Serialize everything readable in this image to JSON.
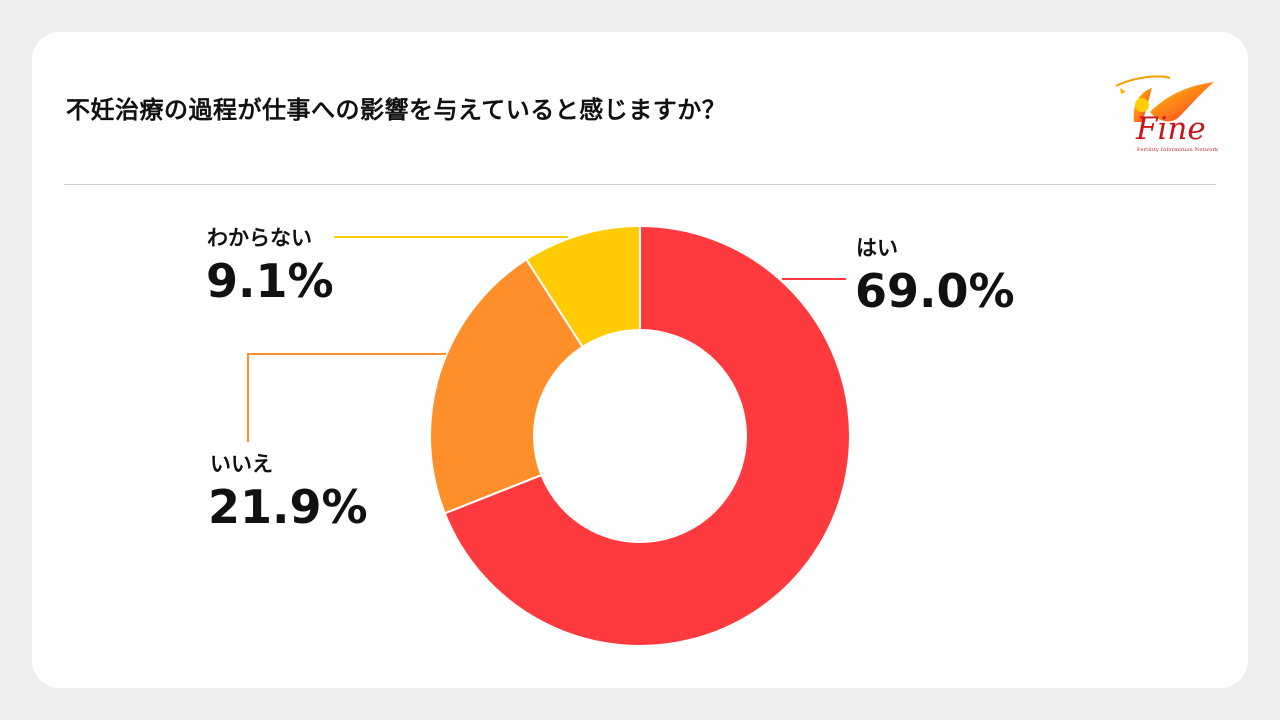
{
  "title": "不妊治療の過程が仕事への影響を与えていると感じますか？",
  "logo": {
    "text": "Fine",
    "subtext": "Fertility Information Network"
  },
  "chart_data": {
    "type": "pie",
    "title": "不妊治療の過程が仕事への影響を与えていると感じますか？",
    "donut": true,
    "start": "top, clockwise",
    "slices": [
      {
        "label": "はい",
        "value": 69.0,
        "display": "69.0%",
        "color": "#FF3A3E"
      },
      {
        "label": "いいえ",
        "value": 21.9,
        "display": "21.9%",
        "color": "#FF8F2B"
      },
      {
        "label": "わからない",
        "value": 9.1,
        "display": "9.1%",
        "color": "#FFCB05"
      }
    ]
  }
}
